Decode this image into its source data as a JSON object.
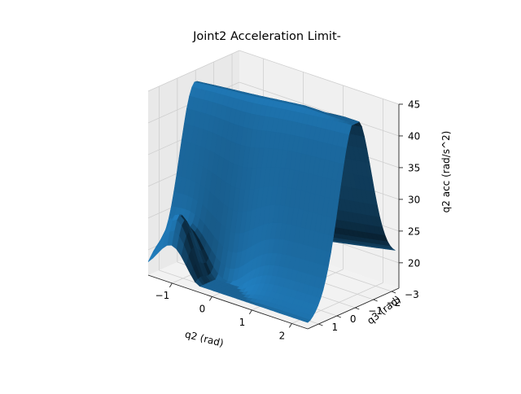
{
  "chart_data": {
    "type": "surface3d",
    "title": "Joint2 Acceleration Limit-",
    "xlabel": "q2 (rad)",
    "ylabel": "q3 (rad)",
    "zlabel": "q2 acc (rad/s^2)",
    "xlim": [
      -1.6,
      2.4
    ],
    "ylim": [
      -3.4,
      1.6
    ],
    "zlim": [
      16,
      45
    ],
    "xticks": [
      -1,
      0,
      1,
      2
    ],
    "yticks": [
      1,
      0,
      -1,
      -2,
      -3
    ],
    "zticks": [
      20,
      25,
      30,
      35,
      40,
      45
    ],
    "x_tick_labels": [
      "−1",
      "0",
      "1",
      "2"
    ],
    "y_tick_labels": [
      "1",
      "0",
      "−1",
      "−2",
      "−3"
    ],
    "z_tick_labels": [
      "20",
      "25",
      "30",
      "35",
      "40",
      "45"
    ],
    "surface_range": {
      "x": [
        -1.6,
        2.4
      ],
      "y": [
        -3.2,
        1.6
      ],
      "z": [
        17,
        45
      ]
    },
    "surface_color": "#1f77b4",
    "grid": true,
    "legend": "none"
  }
}
